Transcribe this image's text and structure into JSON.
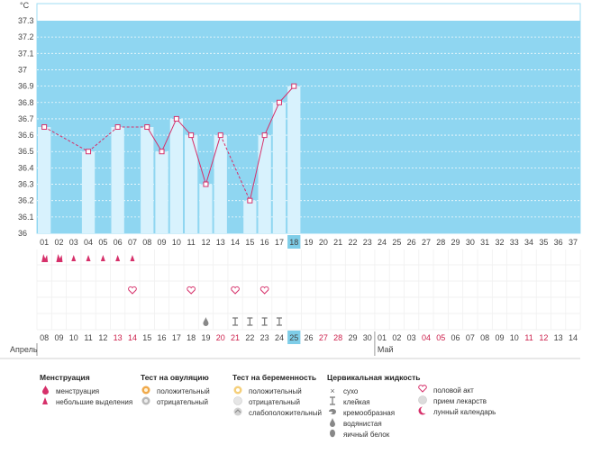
{
  "chart_data": {
    "type": "line",
    "y_unit": "°C",
    "ylim": [
      36.0,
      37.3
    ],
    "yticks": [
      "37.3",
      "37.2",
      "37.1",
      "37",
      "36.9",
      "36.8",
      "36.7",
      "36.6",
      "36.5",
      "36.4",
      "36.3",
      "36.2",
      "36.1",
      "36"
    ],
    "cycle_days": [
      "01",
      "02",
      "03",
      "04",
      "05",
      "06",
      "07",
      "08",
      "09",
      "10",
      "11",
      "12",
      "13",
      "14",
      "15",
      "16",
      "17",
      "18",
      "19",
      "20",
      "21",
      "22",
      "23",
      "24",
      "25",
      "26",
      "27",
      "28",
      "29",
      "30",
      "31",
      "32",
      "33",
      "34",
      "35",
      "36",
      "37"
    ],
    "current_day": "18",
    "temperatures": [
      36.65,
      null,
      null,
      36.5,
      null,
      36.65,
      null,
      36.65,
      36.5,
      36.7,
      36.6,
      36.3,
      36.6,
      null,
      36.2,
      36.6,
      36.8,
      36.9
    ],
    "calendar_dates": [
      "08",
      "09",
      "10",
      "11",
      "12",
      "13",
      "14",
      "15",
      "16",
      "17",
      "18",
      "19",
      "20",
      "21",
      "22",
      "23",
      "24",
      "25",
      "26",
      "27",
      "28",
      "29",
      "30",
      "01",
      "02",
      "03",
      "04",
      "05",
      "06",
      "07",
      "08",
      "09",
      "10",
      "11",
      "12",
      "13",
      "14"
    ],
    "red_dates": [
      5,
      6,
      12,
      13,
      19,
      20,
      26,
      27,
      33,
      34
    ],
    "today_index": 17,
    "months": [
      "Апрель",
      "Май"
    ],
    "month_break_index": 23,
    "menstruation": {
      "heavy": [
        0,
        1
      ],
      "light": [
        2,
        3,
        4,
        5,
        6
      ]
    },
    "intercourse": [
      6,
      10,
      13,
      15
    ],
    "cervical": {
      "watery": [
        11
      ],
      "sticky": [
        13,
        14,
        15,
        16
      ]
    }
  },
  "legend": {
    "menstruation_title": "Менструация",
    "menstruation_heavy": "менструация",
    "menstruation_light": "небольшие выделения",
    "ovulation_title": "Тест на овуляцию",
    "ovulation_pos": "положительный",
    "ovulation_neg": "отрицательный",
    "pregnancy_title": "Тест на беременность",
    "pregnancy_pos": "положительный",
    "pregnancy_neg": "отрицательный",
    "pregnancy_weak": "слабоположительный",
    "cervical_title": "Цервикальная жидкость",
    "cervical_dry": "сухо",
    "cervical_sticky": "клейкая",
    "cervical_creamy": "кремообразная",
    "cervical_watery": "водянистая",
    "cervical_eggwhite": "яичный белок",
    "other_intercourse": "половой акт",
    "other_medicine": "прием лекарств",
    "other_lunar": "лунный календарь"
  },
  "colors": {
    "plot_bg": "#8fd6f1",
    "bar_fill": "#d8f2fd",
    "line": "#d6306a",
    "accent_red": "#cc1f4b",
    "today_bg": "#7ecde8"
  }
}
